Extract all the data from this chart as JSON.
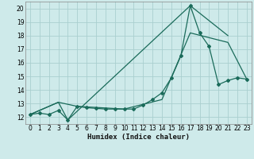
{
  "xlabel": "Humidex (Indice chaleur)",
  "bg_color": "#ceeaea",
  "grid_color": "#aacfcf",
  "line_color": "#1a6b5a",
  "xlim": [
    -0.5,
    23.5
  ],
  "ylim": [
    11.5,
    20.5
  ],
  "xticks": [
    0,
    1,
    2,
    3,
    4,
    5,
    6,
    7,
    8,
    9,
    10,
    11,
    12,
    13,
    14,
    15,
    16,
    17,
    18,
    19,
    20,
    21,
    22,
    23
  ],
  "yticks": [
    12,
    13,
    14,
    15,
    16,
    17,
    18,
    19,
    20
  ],
  "line1_x": [
    0,
    1,
    2,
    3,
    4,
    5,
    6,
    7,
    8,
    9,
    10,
    11,
    12,
    13,
    14,
    15,
    16,
    17,
    18,
    19,
    20,
    21,
    22,
    23
  ],
  "line1_y": [
    12.2,
    12.3,
    12.2,
    12.5,
    11.8,
    12.8,
    12.7,
    12.65,
    12.6,
    12.6,
    12.6,
    12.6,
    12.9,
    13.3,
    13.8,
    14.9,
    16.5,
    20.2,
    18.2,
    17.2,
    14.4,
    14.7,
    14.9,
    14.8
  ],
  "line2_x": [
    0,
    3,
    4,
    17,
    21
  ],
  "line2_y": [
    12.2,
    13.1,
    11.8,
    20.2,
    18.0
  ],
  "line3_x": [
    0,
    3,
    5,
    10,
    14,
    17,
    21,
    23
  ],
  "line3_y": [
    12.2,
    13.1,
    12.8,
    12.6,
    13.3,
    18.2,
    17.5,
    14.8
  ],
  "xlabel_fontsize": 6.5,
  "tick_fontsize": 5.5
}
